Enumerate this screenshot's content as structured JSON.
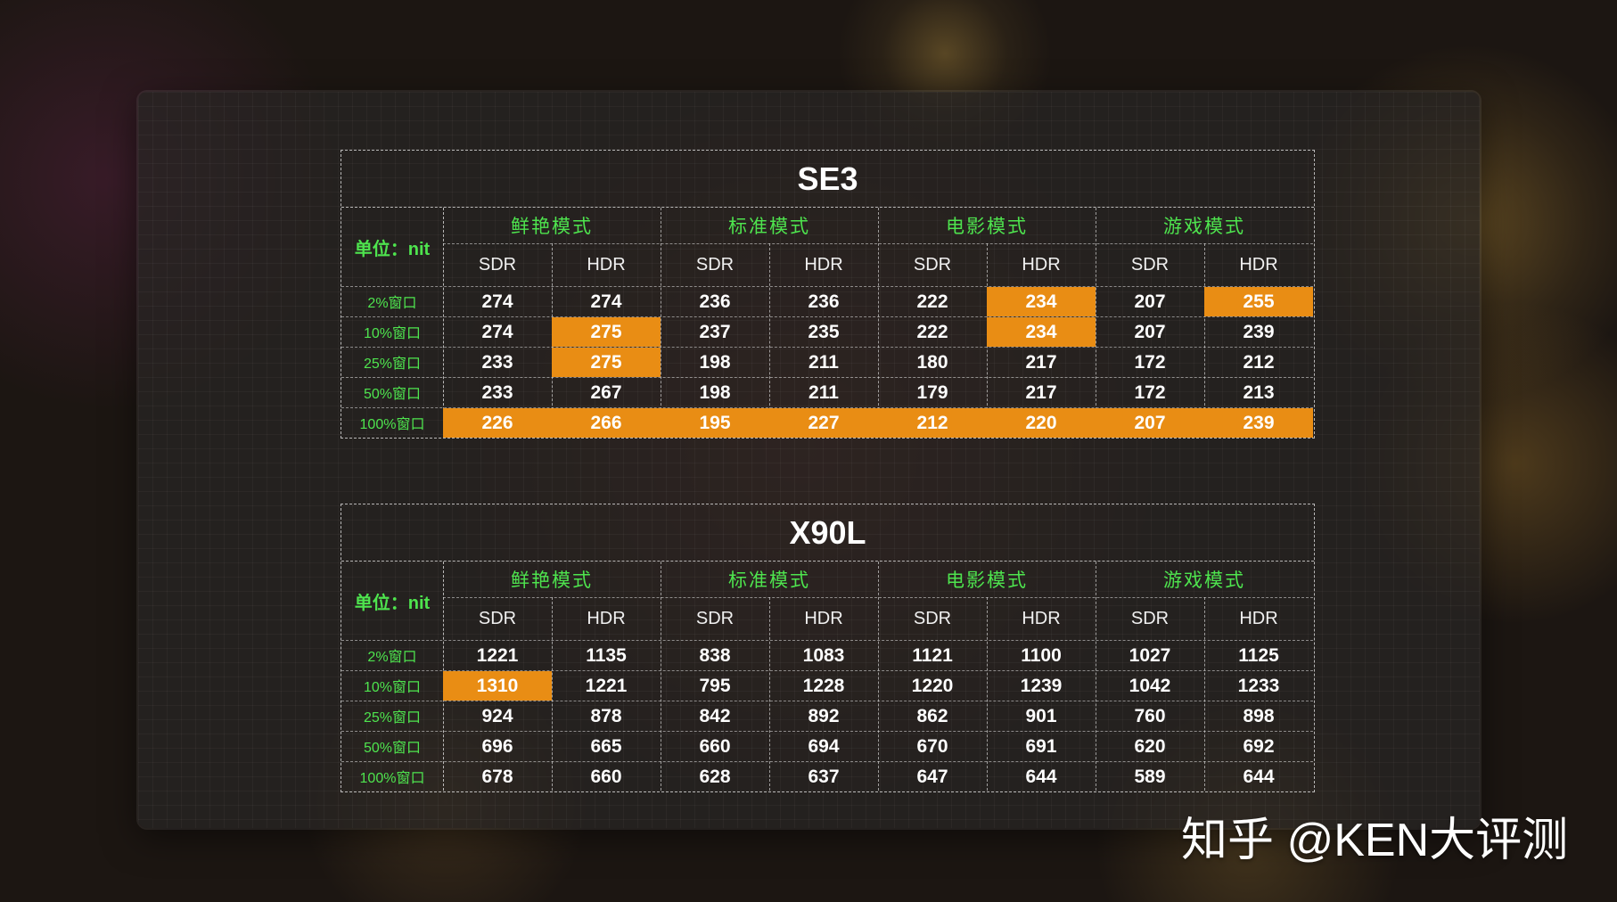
{
  "chart_data": [
    {
      "type": "table",
      "title": "SE3",
      "unit_label": "单位：nit",
      "modes": [
        "鲜艳模式",
        "标准模式",
        "电影模式",
        "游戏模式"
      ],
      "columns": [
        "SDR",
        "HDR",
        "SDR",
        "HDR",
        "SDR",
        "HDR",
        "SDR",
        "HDR"
      ],
      "rows": [
        {
          "label": "2%窗口",
          "values": [
            274,
            274,
            236,
            236,
            222,
            234,
            207,
            255
          ],
          "highlight": [
            5,
            7
          ]
        },
        {
          "label": "10%窗口",
          "values": [
            274,
            275,
            237,
            235,
            222,
            234,
            207,
            239
          ],
          "highlight": [
            1,
            5
          ]
        },
        {
          "label": "25%窗口",
          "values": [
            233,
            275,
            198,
            211,
            180,
            217,
            172,
            212
          ],
          "highlight": [
            1
          ]
        },
        {
          "label": "50%窗口",
          "values": [
            233,
            267,
            198,
            211,
            179,
            217,
            172,
            213
          ],
          "highlight": []
        },
        {
          "label": "100%窗口",
          "values": [
            226,
            266,
            195,
            227,
            212,
            220,
            207,
            239
          ],
          "highlight": [
            0,
            1,
            2,
            3,
            4,
            5,
            6,
            7
          ]
        }
      ]
    },
    {
      "type": "table",
      "title": "X90L",
      "unit_label": "单位：nit",
      "modes": [
        "鲜艳模式",
        "标准模式",
        "电影模式",
        "游戏模式"
      ],
      "columns": [
        "SDR",
        "HDR",
        "SDR",
        "HDR",
        "SDR",
        "HDR",
        "SDR",
        "HDR"
      ],
      "rows": [
        {
          "label": "2%窗口",
          "values": [
            1221,
            1135,
            838,
            1083,
            1121,
            1100,
            1027,
            1125
          ],
          "highlight": []
        },
        {
          "label": "10%窗口",
          "values": [
            1310,
            1221,
            795,
            1228,
            1220,
            1239,
            1042,
            1233
          ],
          "highlight": [
            0
          ]
        },
        {
          "label": "25%窗口",
          "values": [
            924,
            878,
            842,
            892,
            862,
            901,
            760,
            898
          ],
          "highlight": []
        },
        {
          "label": "50%窗口",
          "values": [
            696,
            665,
            660,
            694,
            670,
            691,
            620,
            692
          ],
          "highlight": []
        },
        {
          "label": "100%窗口",
          "values": [
            678,
            660,
            628,
            637,
            647,
            644,
            589,
            644
          ],
          "highlight": []
        }
      ]
    }
  ],
  "colors": {
    "highlight": "#e98d14",
    "label_green": "#4ee44e",
    "text": "#ffffff"
  },
  "watermark": "知乎 @KEN大评测"
}
